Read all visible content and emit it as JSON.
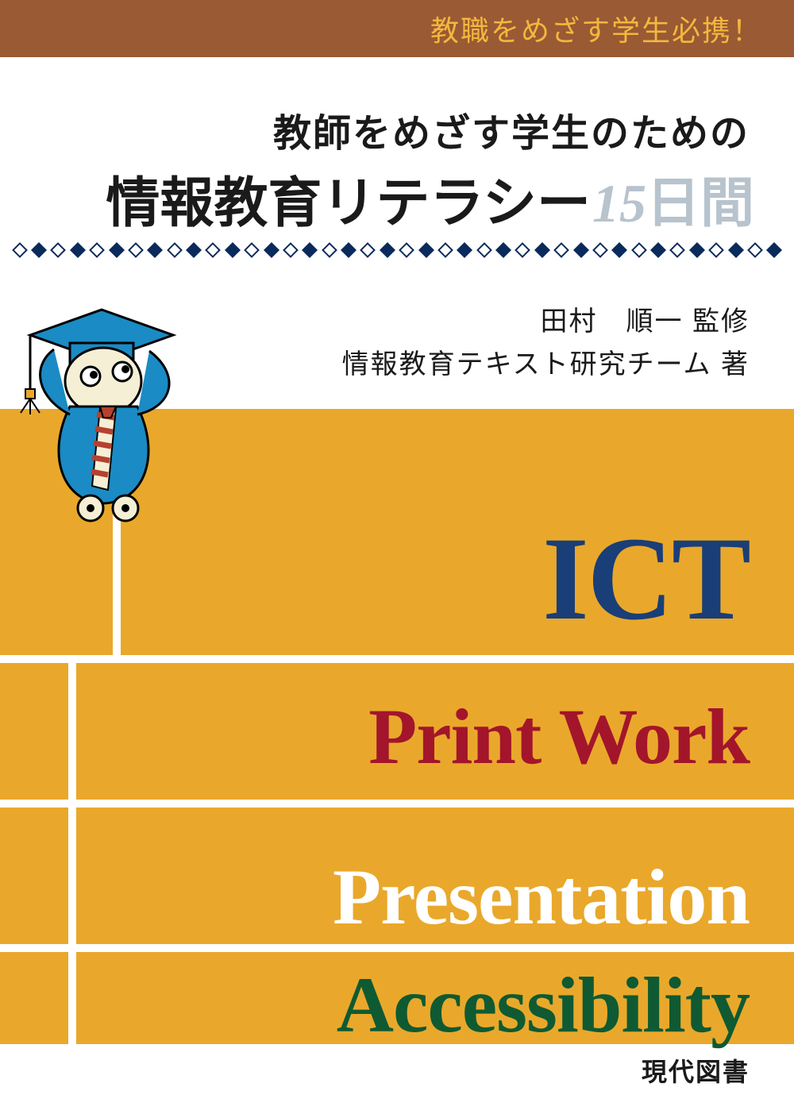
{
  "colors": {
    "banner_bg": "#9a5a34",
    "banner_text": "#f3b73e",
    "title_black": "#1a1a1a",
    "title_gray": "#b7c3cd",
    "divider_dark": "#0a2a5c",
    "yellow": "#e9a82b",
    "ict": "#1a3e78",
    "printwork": "#a3152b",
    "presentation": "#ffffff",
    "accessibility": "#0f5a32",
    "publisher": "#1a1a1a",
    "mascot_blue": "#1a8bc4",
    "mascot_cream": "#f5efd6",
    "mascot_tie1": "#b5412f",
    "mascot_tie2": "#f5efd6"
  },
  "banner": {
    "text": "教職をめざす学生必携！"
  },
  "title": {
    "subtitle": "教師をめざす学生のための",
    "main": "情報教育リテラシー",
    "number": "15",
    "days": "日間"
  },
  "authors": {
    "line1": "田村　順一 監修",
    "line2": "情報教育テキスト研究チーム 著"
  },
  "keywords": {
    "ict": "ICT",
    "printwork": "Print Work",
    "presentation": "Presentation",
    "accessibility": "Accessibility"
  },
  "publisher": "現代図書",
  "divider": {
    "count": 40
  },
  "typography": {
    "banner_fontsize": 36,
    "subtitle_fontsize": 48,
    "title_fontsize": 68,
    "author_fontsize": 34,
    "kw_big_fontsize": 150,
    "kw_fontsize": 100,
    "publisher_fontsize": 32
  }
}
